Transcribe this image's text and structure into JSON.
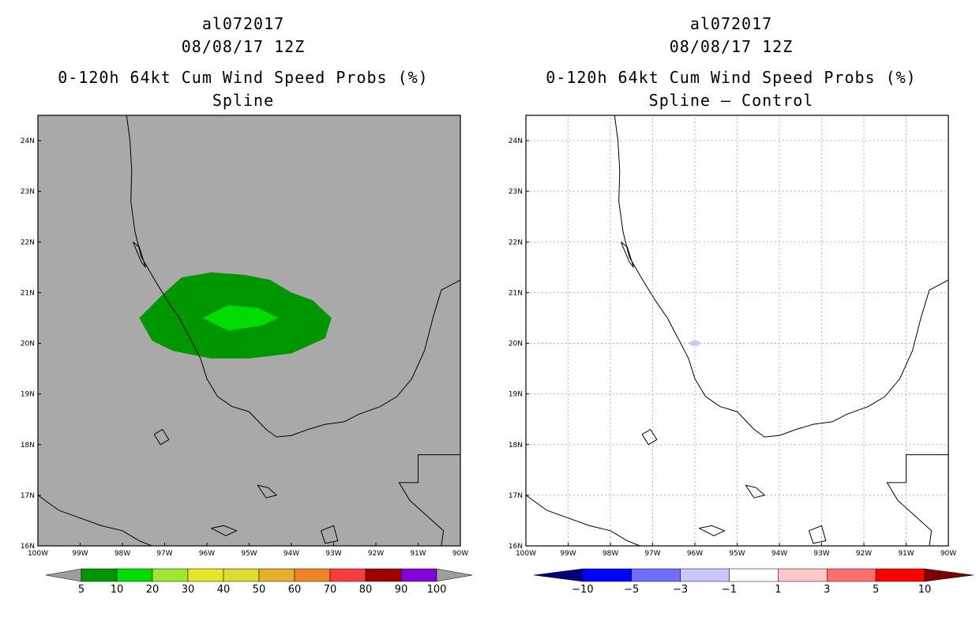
{
  "panels": [
    {
      "storm": "al072017",
      "date": "08/08/17 12Z",
      "product": "0-120h 64kt Cum Wind Speed Probs (%)",
      "subtitle": "Spline",
      "background": "#a9a9a9",
      "colorbar": {
        "colors": [
          "#9e9e9e",
          "#009600",
          "#00dc00",
          "#a0e632",
          "#e6e628",
          "#dcdc32",
          "#e6af2d",
          "#f08228",
          "#fa3c3c",
          "#a00000",
          "#8200dc",
          "#9e9e9e"
        ],
        "labels": [
          "5",
          "10",
          "20",
          "30",
          "40",
          "50",
          "60",
          "70",
          "80",
          "90",
          "100"
        ]
      }
    },
    {
      "storm": "al072017",
      "date": "08/08/17 12Z",
      "product": "0-120h 64kt Cum Wind Speed Probs (%)",
      "subtitle": "Spline – Control",
      "background": "#ffffff",
      "colorbar": {
        "colors": [
          "#00007a",
          "#0000ff",
          "#6e6eff",
          "#c8c8ff",
          "#ffffff",
          "#ffc8c8",
          "#ff6e6e",
          "#ff0000",
          "#7a0000"
        ],
        "labels": [
          "−10",
          "−5",
          "−3",
          "−1",
          "1",
          "3",
          "5",
          "10"
        ]
      }
    }
  ],
  "map": {
    "lon_range": [
      -100,
      -90
    ],
    "lat_range": [
      16,
      24.5
    ],
    "lon_ticks": [
      "100W",
      "99W",
      "98W",
      "97W",
      "96W",
      "95W",
      "94W",
      "93W",
      "92W",
      "91W",
      "90W"
    ],
    "lat_ticks": [
      "16N",
      "17N",
      "18N",
      "19N",
      "20N",
      "21N",
      "22N",
      "23N",
      "24N"
    ],
    "grid_color": "#b4b4b4"
  }
}
